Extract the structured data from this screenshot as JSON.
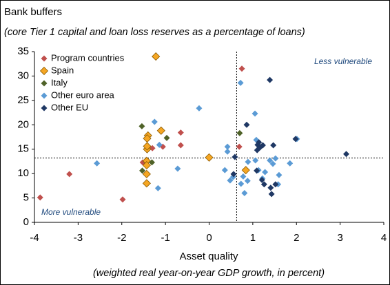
{
  "chart_data": {
    "type": "scatter",
    "title": "Bank buffers",
    "subtitle": "(core Tier 1 capital and loan loss reserves as a percentage of loans)",
    "x_label": "Asset quality",
    "x_sublabel": "(weighted real year-on-year GDP growth, in percent)",
    "annotations": [
      "Less vulnerable",
      "More vulnerable"
    ],
    "xlim": [
      -4,
      4
    ],
    "xticks": [
      -4,
      -3,
      -2,
      -1,
      0,
      1,
      2,
      3,
      4
    ],
    "ylim": [
      0,
      35
    ],
    "yticks": [
      0,
      5,
      10,
      15,
      20,
      25,
      30,
      35
    ],
    "vline": 0.63,
    "hline": 13.2,
    "legend": "upper left",
    "series": [
      {
        "name": "Program countries",
        "color": "#c0504d",
        "x": [
          -3.87,
          -3.2,
          -1.98,
          -1.52,
          -1.3,
          -1.06,
          -0.65,
          -0.65,
          0.75,
          0.69
        ],
        "values": [
          5.1,
          9.9,
          4.7,
          12.3,
          15.2,
          15.5,
          18.4,
          15.8,
          31.5,
          15.5
        ]
      },
      {
        "name": "Spain",
        "color": "#f5a623",
        "x": [
          -1.22,
          -1.4,
          -1.42,
          -1.1,
          -1.42,
          -1.42,
          -1.43,
          -1.43,
          -1.43,
          -1.43,
          0.0,
          0.84
        ],
        "values": [
          34,
          17.8,
          17.2,
          18.8,
          15,
          15.6,
          12.6,
          11.7,
          9.9,
          8.0,
          13.3,
          10.7
        ]
      },
      {
        "name": "Italy",
        "color": "#4f6228",
        "x": [
          -1.54,
          -0.97,
          -1.53,
          -1.31,
          0.7
        ],
        "values": [
          19.7,
          17.3,
          10.6,
          12.3,
          18.3
        ]
      },
      {
        "name": "Other euro area",
        "color": "#5b9bd5",
        "x": [
          -2.57,
          -1.25,
          -1.14,
          -0.72,
          -1.17,
          -0.23,
          0.42,
          0.42,
          0.36,
          0.48,
          0.55,
          0.72,
          0.73,
          0.78,
          0.81,
          0.88,
          0.89,
          1.05,
          1.06,
          1.08,
          1.13,
          1.22,
          1.28,
          1.39,
          1.46,
          1.52,
          1.58,
          1.6,
          1.85,
          2.01
        ],
        "values": [
          12.1,
          20.6,
          15.9,
          11,
          7,
          23.4,
          14.5,
          15.5,
          10.7,
          8.6,
          9.3,
          28.6,
          7.9,
          9.4,
          6.0,
          8.5,
          12.4,
          22.3,
          12.7,
          16.9,
          10.7,
          9.0,
          10.3,
          12.7,
          12,
          13.1,
          7.8,
          9.7,
          12.1,
          17.1
        ]
      },
      {
        "name": "Other EU",
        "color": "#1f3864",
        "x": [
          0.56,
          0.59,
          0.86,
          1.1,
          1.11,
          1.14,
          1.17,
          1.23,
          1.09,
          1.21,
          1.26,
          1.39,
          1.41,
          1.43,
          1.47,
          1.52,
          1.98,
          3.14
        ],
        "values": [
          9.9,
          13.4,
          20,
          14.8,
          15.9,
          16.4,
          15.4,
          15.8,
          10.6,
          8.7,
          7.8,
          29.2,
          7.1,
          5.8,
          15.8,
          7.8,
          17.1,
          14
        ]
      }
    ]
  }
}
